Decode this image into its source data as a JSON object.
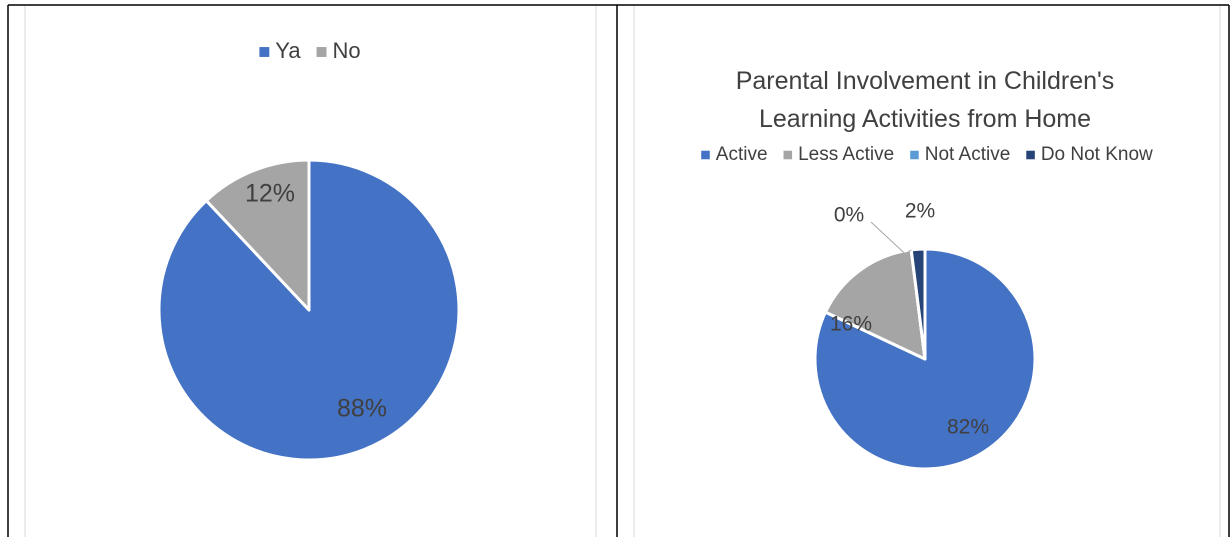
{
  "chart_data": [
    {
      "type": "pie",
      "categories": [
        "Ya",
        "No"
      ],
      "values": [
        88,
        12
      ],
      "value_labels": [
        "88%",
        "12%"
      ],
      "colors": [
        "#4472c4",
        "#a5a5a5"
      ],
      "legend": "top"
    },
    {
      "type": "pie",
      "title": "Parental Involvement in Children's Learning Activities from Home",
      "categories": [
        "Active",
        "Less Active",
        "Not Active",
        "Do Not Know"
      ],
      "values": [
        82,
        16,
        0,
        2
      ],
      "value_labels": [
        "82%",
        "16%",
        "0%",
        "2%"
      ],
      "colors": [
        "#4472c4",
        "#a5a5a5",
        "#5b9bd5",
        "#264478"
      ],
      "legend": "top"
    }
  ]
}
